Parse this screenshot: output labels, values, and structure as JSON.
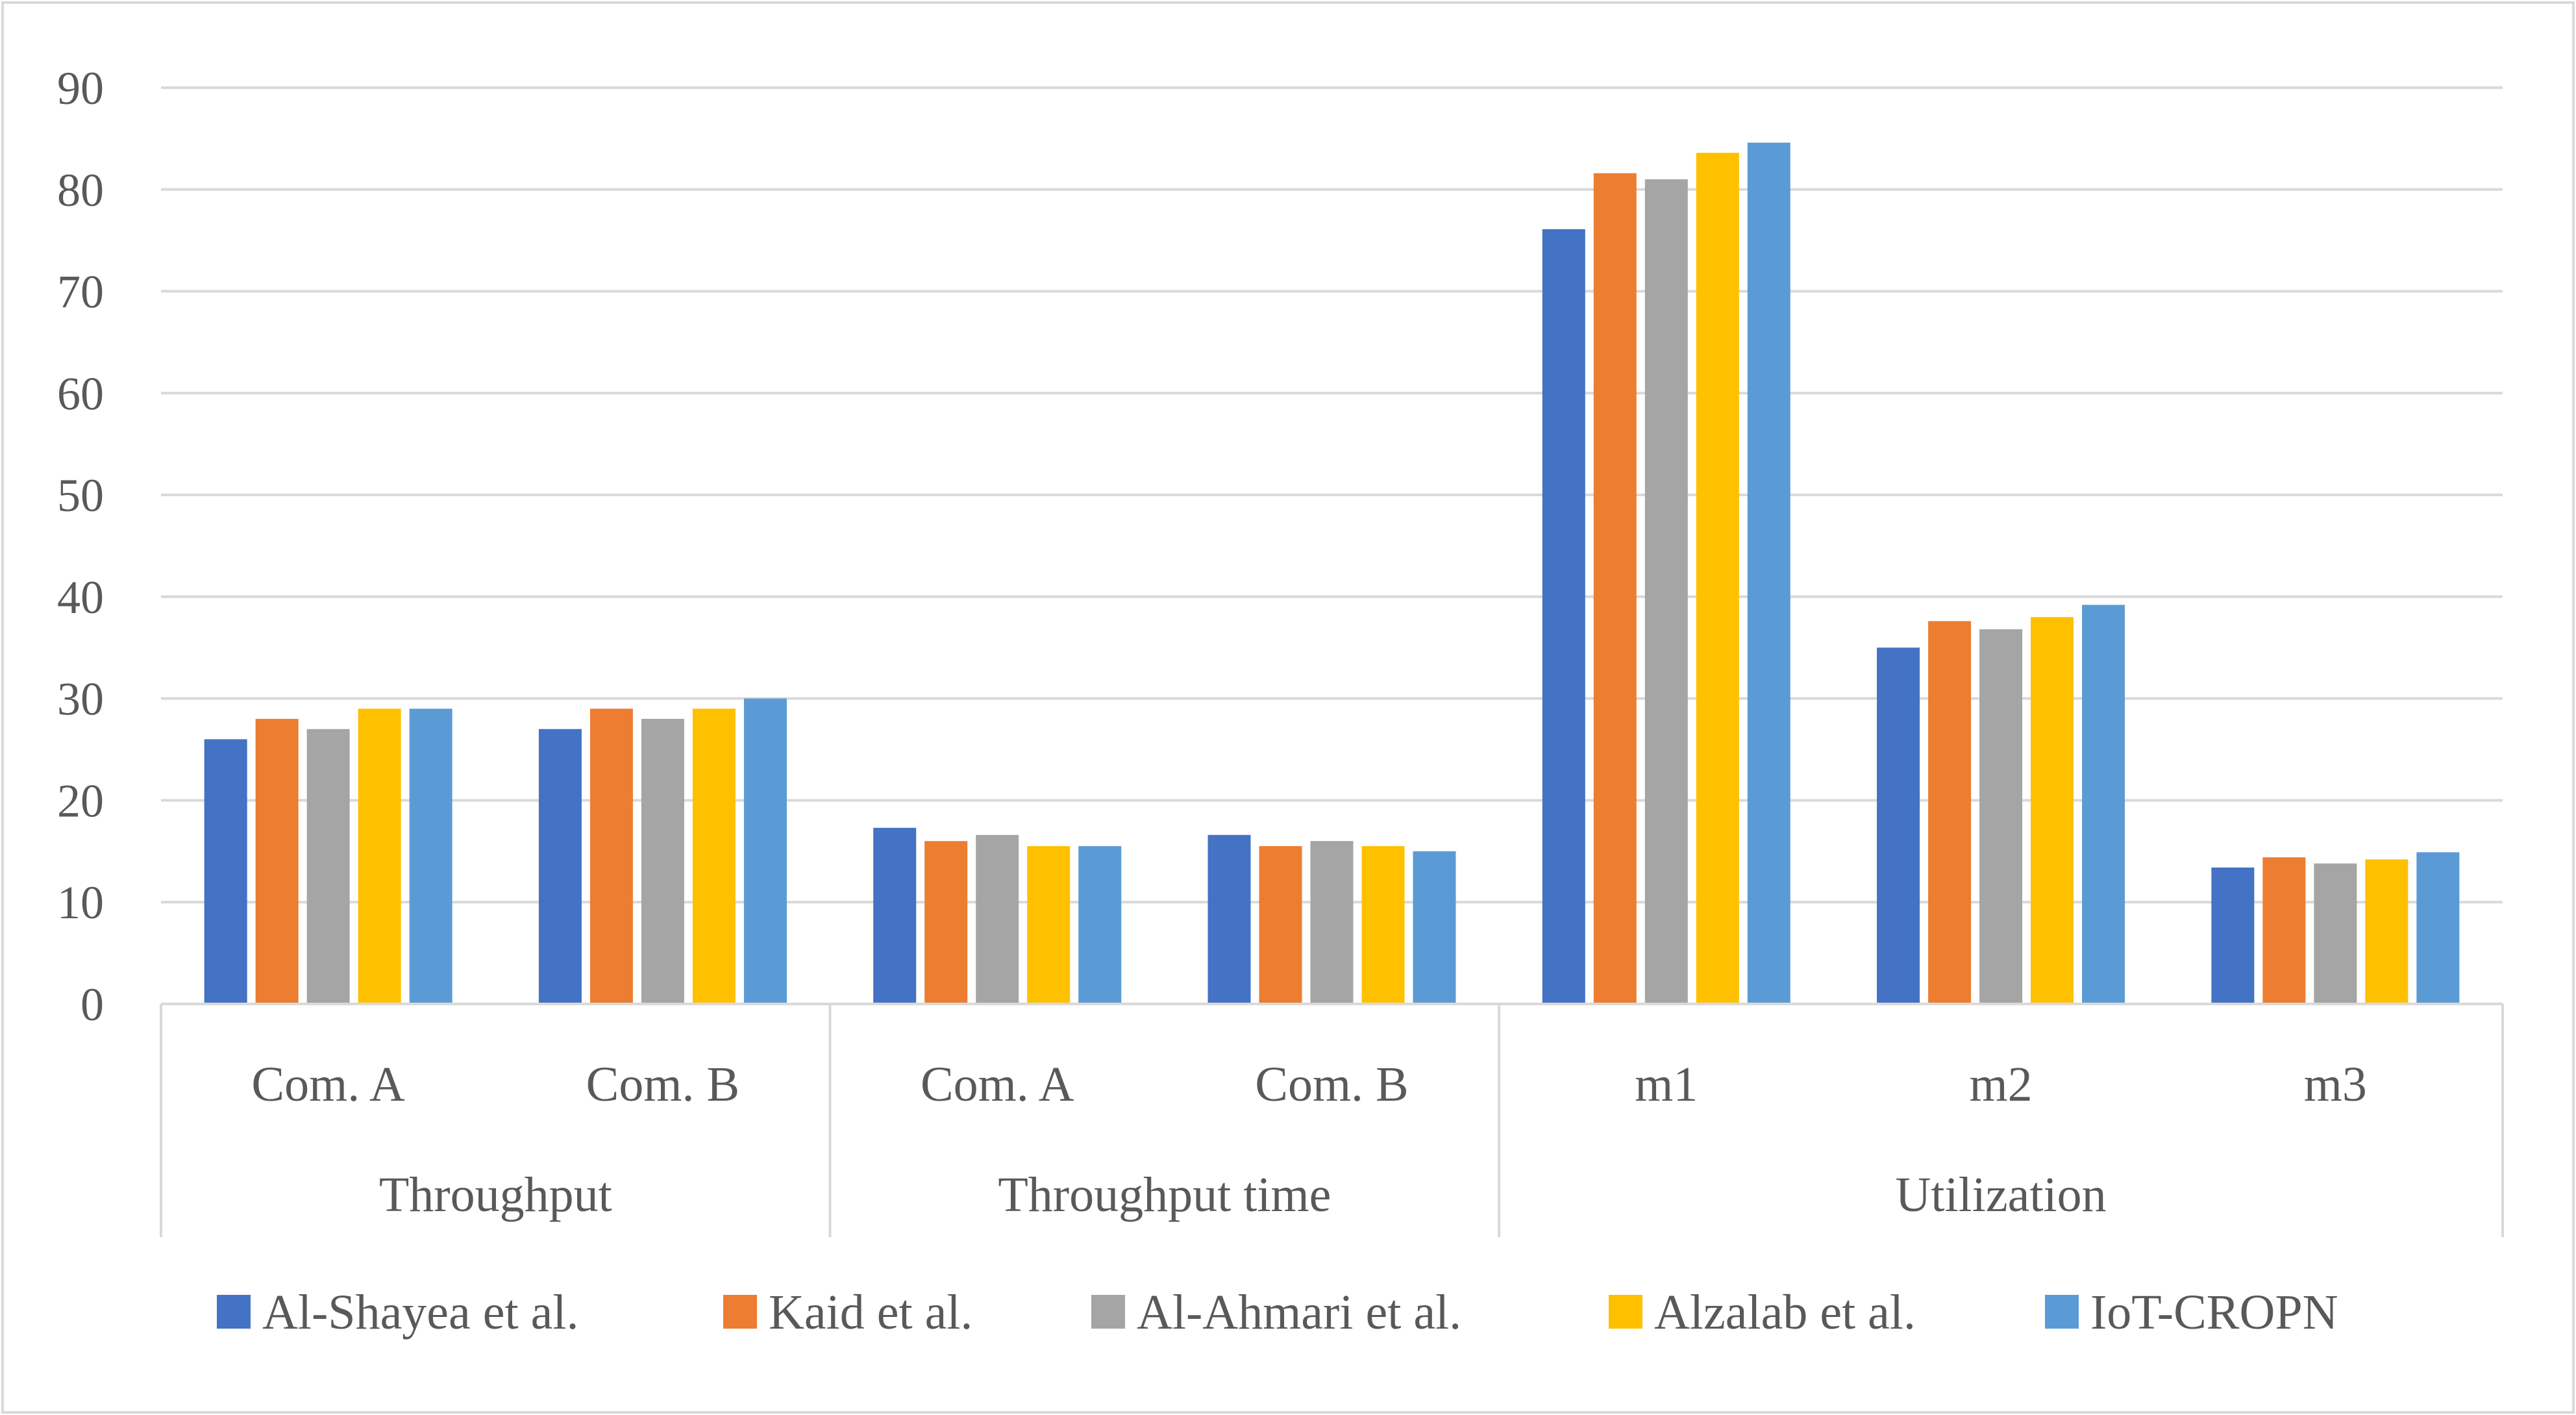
{
  "chart_data": {
    "type": "bar",
    "title": "",
    "xlabel": "",
    "ylabel": "",
    "ylim": [
      0,
      90
    ],
    "yticks": [
      0,
      10,
      20,
      30,
      40,
      50,
      60,
      70,
      80,
      90
    ],
    "grid": true,
    "legend_position": "bottom",
    "groups": [
      {
        "label": "Throughput",
        "categories": [
          "Com. A",
          "Com. B"
        ]
      },
      {
        "label": "Throughput time",
        "categories": [
          "Com. A",
          "Com. B"
        ]
      },
      {
        "label": "Utilization",
        "categories": [
          "m1",
          "m2",
          "m3"
        ]
      }
    ],
    "series": [
      {
        "name": "Al-Shayea et al.",
        "color": "#4472C4",
        "values": [
          26,
          27,
          17.3,
          16.6,
          76.1,
          35,
          13.4
        ]
      },
      {
        "name": "Kaid et al.",
        "color": "#ED7D31",
        "values": [
          28,
          29,
          16,
          15.5,
          81.6,
          37.6,
          14.4
        ]
      },
      {
        "name": "Al-Ahmari et al.",
        "color": "#A5A5A5",
        "values": [
          27,
          28,
          16.6,
          16,
          81,
          36.8,
          13.8
        ]
      },
      {
        "name": "Alzalab et al.",
        "color": "#FFC000",
        "values": [
          29,
          29,
          15.5,
          15.5,
          83.6,
          38,
          14.2
        ]
      },
      {
        "name": "IoT-CROPN",
        "color": "#5B9BD5",
        "values": [
          29,
          30,
          15.5,
          15,
          84.6,
          39.2,
          14.9
        ]
      }
    ]
  }
}
